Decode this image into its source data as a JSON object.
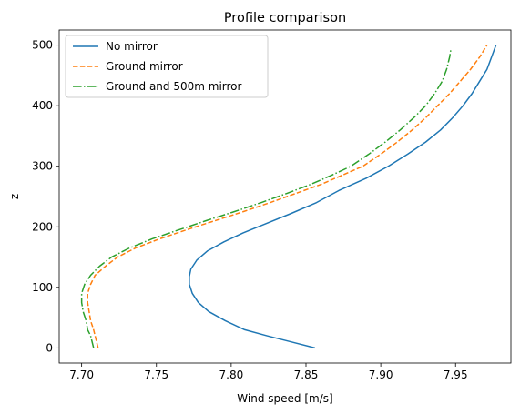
{
  "chart_data": {
    "type": "line",
    "title": "Profile comparison",
    "xlabel": "Wind speed [m/s]",
    "ylabel": "z",
    "xlim": [
      7.685,
      7.987
    ],
    "ylim": [
      -25,
      525
    ],
    "xticks": [
      7.7,
      7.75,
      7.8,
      7.85,
      7.9,
      7.95
    ],
    "xtick_labels": [
      "7.70",
      "7.75",
      "7.80",
      "7.85",
      "7.90",
      "7.95"
    ],
    "yticks": [
      0,
      100,
      200,
      300,
      400,
      500
    ],
    "ytick_labels": [
      "0",
      "100",
      "200",
      "300",
      "400",
      "500"
    ],
    "grid": false,
    "legend_position": "top-left",
    "series": [
      {
        "name": "No mirror",
        "color": "#1f77b4",
        "dash": "solid",
        "points": [
          [
            7.856,
            0
          ],
          [
            7.84,
            10
          ],
          [
            7.824,
            20
          ],
          [
            7.809,
            30
          ],
          [
            7.796,
            45
          ],
          [
            7.785,
            60
          ],
          [
            7.778,
            75
          ],
          [
            7.774,
            90
          ],
          [
            7.772,
            105
          ],
          [
            7.772,
            118
          ],
          [
            7.773,
            130
          ],
          [
            7.777,
            145
          ],
          [
            7.784,
            160
          ],
          [
            7.795,
            175
          ],
          [
            7.808,
            190
          ],
          [
            7.823,
            205
          ],
          [
            7.84,
            222
          ],
          [
            7.857,
            240
          ],
          [
            7.872,
            260
          ],
          [
            7.89,
            280
          ],
          [
            7.905,
            300
          ],
          [
            7.918,
            320
          ],
          [
            7.93,
            340
          ],
          [
            7.94,
            360
          ],
          [
            7.948,
            380
          ],
          [
            7.955,
            400
          ],
          [
            7.961,
            420
          ],
          [
            7.966,
            440
          ],
          [
            7.971,
            460
          ],
          [
            7.974,
            480
          ],
          [
            7.977,
            500
          ]
        ]
      },
      {
        "name": "Ground mirror",
        "color": "#ff7f0e",
        "dash": "dashed",
        "points": [
          [
            7.711,
            0
          ],
          [
            7.71,
            10
          ],
          [
            7.709,
            20
          ],
          [
            7.708,
            30
          ],
          [
            7.706,
            45
          ],
          [
            7.705,
            60
          ],
          [
            7.704,
            75
          ],
          [
            7.704,
            90
          ],
          [
            7.706,
            105
          ],
          [
            7.709,
            120
          ],
          [
            7.716,
            135
          ],
          [
            7.724,
            150
          ],
          [
            7.736,
            165
          ],
          [
            7.752,
            180
          ],
          [
            7.77,
            195
          ],
          [
            7.789,
            210
          ],
          [
            7.808,
            225
          ],
          [
            7.826,
            240
          ],
          [
            7.843,
            255
          ],
          [
            7.86,
            270
          ],
          [
            7.874,
            285
          ],
          [
            7.888,
            300
          ],
          [
            7.9,
            320
          ],
          [
            7.911,
            340
          ],
          [
            7.921,
            360
          ],
          [
            7.93,
            380
          ],
          [
            7.938,
            400
          ],
          [
            7.946,
            420
          ],
          [
            7.953,
            440
          ],
          [
            7.96,
            460
          ],
          [
            7.966,
            480
          ],
          [
            7.971,
            500
          ]
        ]
      },
      {
        "name": "Ground and 500m mirror",
        "color": "#2ca02c",
        "dash": "dashdot",
        "points": [
          [
            7.708,
            0
          ],
          [
            7.707,
            10
          ],
          [
            7.706,
            20
          ],
          [
            7.704,
            30
          ],
          [
            7.703,
            45
          ],
          [
            7.701,
            60
          ],
          [
            7.7,
            75
          ],
          [
            7.7,
            90
          ],
          [
            7.702,
            105
          ],
          [
            7.706,
            120
          ],
          [
            7.712,
            135
          ],
          [
            7.72,
            150
          ],
          [
            7.732,
            165
          ],
          [
            7.747,
            180
          ],
          [
            7.765,
            195
          ],
          [
            7.783,
            210
          ],
          [
            7.802,
            225
          ],
          [
            7.82,
            240
          ],
          [
            7.837,
            255
          ],
          [
            7.853,
            270
          ],
          [
            7.867,
            285
          ],
          [
            7.88,
            300
          ],
          [
            7.892,
            320
          ],
          [
            7.903,
            340
          ],
          [
            7.913,
            360
          ],
          [
            7.922,
            380
          ],
          [
            7.93,
            400
          ],
          [
            7.936,
            420
          ],
          [
            7.941,
            440
          ],
          [
            7.944,
            460
          ],
          [
            7.946,
            480
          ],
          [
            7.947,
            495
          ]
        ]
      }
    ]
  }
}
